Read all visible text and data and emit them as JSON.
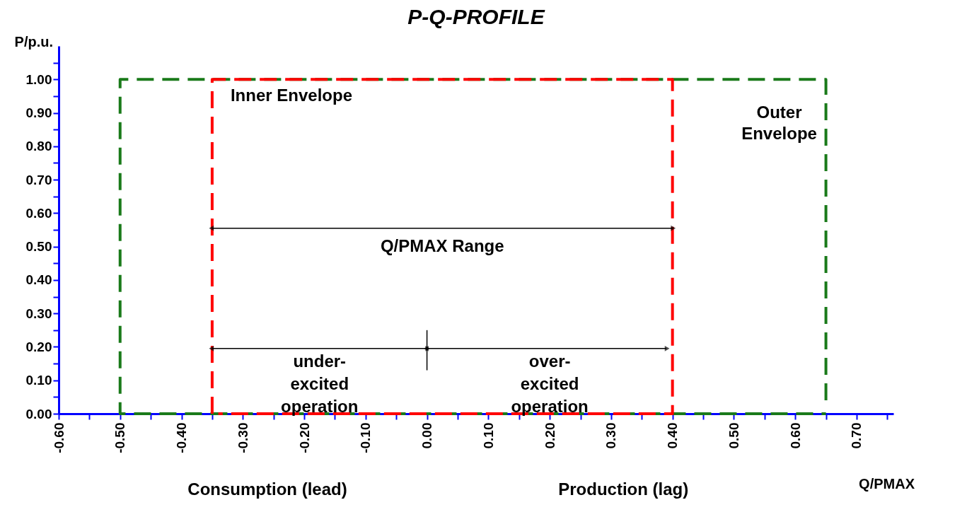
{
  "chart_data": {
    "type": "line",
    "title": "P-Q-PROFILE",
    "ylabel": "P/p.u.",
    "xlabel": "Q/PMAX",
    "line_style": "dashed",
    "marker": "none",
    "grid": false,
    "xlim": [
      -0.6,
      0.76
    ],
    "ylim": [
      0,
      1.1
    ],
    "xticks": [
      {
        "value": -0.6,
        "label": "-0.60"
      },
      {
        "value": -0.55,
        "label": null
      },
      {
        "value": -0.5,
        "label": "-0.50"
      },
      {
        "value": -0.45,
        "label": null
      },
      {
        "value": -0.4,
        "label": "-0.40"
      },
      {
        "value": -0.35,
        "label": null
      },
      {
        "value": -0.3,
        "label": "-0.30"
      },
      {
        "value": -0.25,
        "label": null
      },
      {
        "value": -0.2,
        "label": "-0.20"
      },
      {
        "value": -0.15,
        "label": null
      },
      {
        "value": -0.1,
        "label": "-0.10"
      },
      {
        "value": -0.05,
        "label": null
      },
      {
        "value": 0,
        "label": "0.00"
      },
      {
        "value": 0.05,
        "label": null
      },
      {
        "value": 0.1,
        "label": "0.10"
      },
      {
        "value": 0.15,
        "label": null
      },
      {
        "value": 0.2,
        "label": "0.20"
      },
      {
        "value": 0.25,
        "label": null
      },
      {
        "value": 0.3,
        "label": "0.30"
      },
      {
        "value": 0.35,
        "label": null
      },
      {
        "value": 0.4,
        "label": "0.40"
      },
      {
        "value": 0.45,
        "label": null
      },
      {
        "value": 0.5,
        "label": "0.50"
      },
      {
        "value": 0.55,
        "label": null
      },
      {
        "value": 0.6,
        "label": "0.60"
      },
      {
        "value": 0.65,
        "label": null
      },
      {
        "value": 0.7,
        "label": "0.70"
      },
      {
        "value": 0.75,
        "label": null
      }
    ],
    "yticks": [
      {
        "value": 0,
        "label": "0.00"
      },
      {
        "value": 0.05,
        "label": null
      },
      {
        "value": 0.1,
        "label": "0.10"
      },
      {
        "value": 0.15,
        "label": null
      },
      {
        "value": 0.2,
        "label": "0.20"
      },
      {
        "value": 0.25,
        "label": null
      },
      {
        "value": 0.3,
        "label": "0.30"
      },
      {
        "value": 0.35,
        "label": null
      },
      {
        "value": 0.4,
        "label": "0.40"
      },
      {
        "value": 0.45,
        "label": null
      },
      {
        "value": 0.5,
        "label": "0.50"
      },
      {
        "value": 0.55,
        "label": null
      },
      {
        "value": 0.6,
        "label": "0.60"
      },
      {
        "value": 0.65,
        "label": null
      },
      {
        "value": 0.7,
        "label": "0.70"
      },
      {
        "value": 0.75,
        "label": null
      },
      {
        "value": 0.8,
        "label": "0.80"
      },
      {
        "value": 0.85,
        "label": null
      },
      {
        "value": 0.9,
        "label": "0.90"
      },
      {
        "value": 0.95,
        "label": null
      },
      {
        "value": 1.0,
        "label": "1.00"
      },
      {
        "value": 1.05,
        "label": null
      }
    ],
    "series": [
      {
        "name": "Outer Envelope",
        "color": "#1a7a1a",
        "x": [
          0.65,
          0.65,
          -0.5,
          -0.5,
          0.65
        ],
        "values": [
          0.04,
          1,
          1,
          0,
          0
        ]
      },
      {
        "name": "Inner Envelope",
        "color": "#ff0000",
        "x": [
          -0.35,
          -0.35,
          0.4,
          0.4,
          -0.34
        ],
        "values": [
          0,
          1,
          1,
          0,
          0
        ]
      }
    ],
    "annotations": [
      "Q/PMAX Range",
      "under-\nexcited\noperation",
      "over-\nexcited\noperation",
      "Consumption (lead)",
      "Production (lag)"
    ]
  }
}
